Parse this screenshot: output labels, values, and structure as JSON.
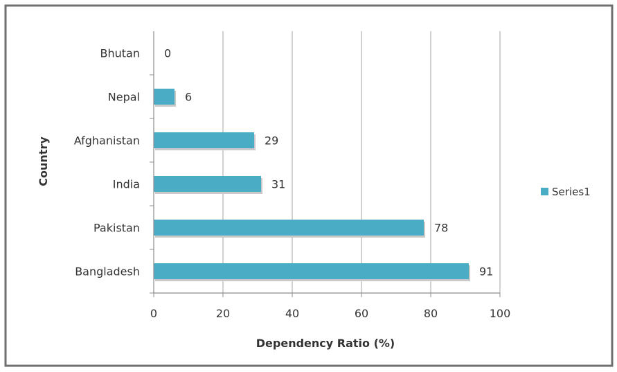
{
  "chart_data": {
    "type": "bar",
    "orientation": "horizontal",
    "categories": [
      "Bangladesh",
      "Pakistan",
      "India",
      "Afghanistan",
      "Nepal",
      "Bhutan"
    ],
    "series": [
      {
        "name": "Series1",
        "values": [
          91,
          78,
          31,
          29,
          6,
          0
        ]
      }
    ],
    "xlabel": "Dependency Ratio (%)",
    "ylabel": "Country",
    "xlim": [
      0,
      100
    ],
    "x_ticks": [
      "0",
      "20",
      "40",
      "60",
      "80",
      "100"
    ],
    "grid": "vertical",
    "legend_position": "right",
    "data_labels": true,
    "colors": {
      "bar": "#4bacc6",
      "bar_shadow": "#c9c9c9",
      "grid": "#b5b5b5",
      "axis": "#8c8c8c",
      "frame": "#6f6f6f",
      "text": "#333333"
    }
  }
}
